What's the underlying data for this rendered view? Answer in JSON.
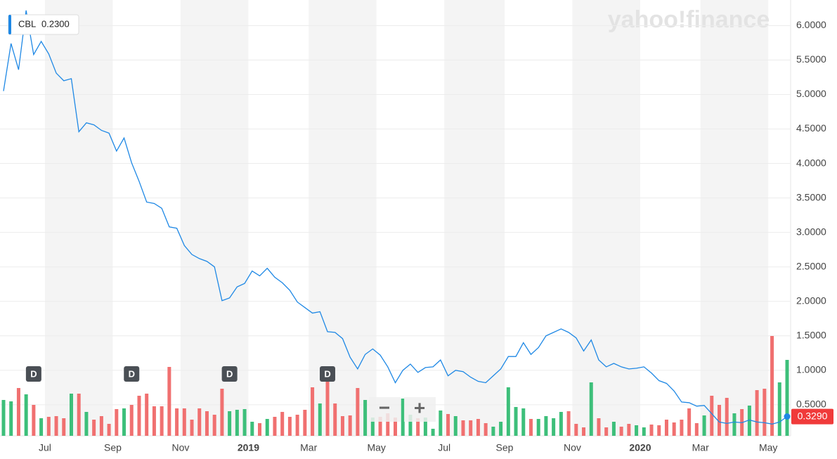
{
  "chart_data": {
    "type": "line",
    "watermark": "yahoo!finance",
    "tooltip": {
      "symbol": "CBL",
      "value": "0.2300"
    },
    "last_price": {
      "value": 0.329,
      "label": "0.3290"
    },
    "zoom": {
      "out": "−",
      "in": "+"
    },
    "categories": [
      null,
      null,
      null,
      null,
      null,
      "Jul",
      null,
      null,
      null,
      null,
      null,
      null,
      null,
      null,
      "Sep",
      null,
      null,
      null,
      null,
      null,
      null,
      null,
      null,
      "Nov",
      null,
      null,
      null,
      null,
      null,
      null,
      null,
      null,
      "2019",
      null,
      null,
      null,
      null,
      null,
      null,
      null,
      "Mar",
      null,
      null,
      null,
      null,
      null,
      null,
      null,
      null,
      "May",
      null,
      null,
      null,
      null,
      null,
      null,
      null,
      null,
      "Jul",
      null,
      null,
      null,
      null,
      null,
      null,
      null,
      "Sep",
      null,
      null,
      null,
      null,
      null,
      null,
      null,
      null,
      "Nov",
      null,
      null,
      null,
      null,
      null,
      null,
      null,
      null,
      "2020",
      null,
      null,
      null,
      null,
      null,
      null,
      null,
      "Mar",
      null,
      null,
      null,
      null,
      null,
      null,
      null,
      null,
      "May",
      null,
      null,
      null
    ],
    "series": [
      {
        "name": "CBL",
        "color": "#1e88e5",
        "values": [
          5.05,
          5.74,
          5.36,
          6.22,
          5.58,
          5.77,
          5.59,
          5.31,
          5.2,
          5.23,
          4.46,
          4.59,
          4.56,
          4.48,
          4.44,
          4.18,
          4.37,
          4.01,
          3.74,
          3.44,
          3.42,
          3.35,
          3.08,
          3.06,
          2.81,
          2.68,
          2.62,
          2.58,
          2.5,
          2.01,
          2.05,
          2.21,
          2.26,
          2.44,
          2.37,
          2.48,
          2.35,
          2.27,
          2.16,
          1.99,
          1.91,
          1.83,
          1.85,
          1.56,
          1.55,
          1.46,
          1.19,
          1.02,
          1.23,
          1.31,
          1.22,
          1.05,
          0.82,
          1.0,
          1.09,
          0.97,
          1.04,
          1.05,
          1.15,
          0.92,
          1.0,
          0.98,
          0.9,
          0.84,
          0.82,
          0.92,
          1.02,
          1.2,
          1.2,
          1.4,
          1.23,
          1.33,
          1.5,
          1.55,
          1.6,
          1.55,
          1.47,
          1.28,
          1.44,
          1.15,
          1.05,
          1.1,
          1.05,
          1.02,
          1.03,
          1.05,
          0.96,
          0.85,
          0.81,
          0.7,
          0.54,
          0.53,
          0.48,
          0.49,
          0.37,
          0.25,
          0.23,
          0.25,
          0.24,
          0.28,
          0.25,
          0.24,
          0.22,
          0.25,
          0.33
        ]
      },
      {
        "name": "Volume",
        "axis": "y2",
        "up_color": "#3dbf7a",
        "down_color": "#f07070",
        "values": [
          51,
          49,
          68,
          59,
          44,
          25,
          27,
          28,
          25,
          60,
          60,
          34,
          23,
          28,
          17,
          38,
          39,
          44,
          57,
          60,
          42,
          42,
          98,
          39,
          39,
          23,
          39,
          35,
          30,
          67,
          35,
          37,
          38,
          20,
          18,
          24,
          27,
          34,
          27,
          30,
          37,
          69,
          46,
          78,
          46,
          28,
          29,
          68,
          51,
          26,
          27,
          32,
          26,
          53,
          30,
          25,
          26,
          10,
          36,
          31,
          28,
          22,
          22,
          24,
          18,
          13,
          20,
          69,
          41,
          39,
          24,
          24,
          28,
          25,
          34,
          35,
          17,
          12,
          76,
          25,
          12,
          20,
          13,
          17,
          15,
          12,
          16,
          15,
          23,
          19,
          23,
          39,
          18,
          29,
          57,
          44,
          54,
          32,
          38,
          43,
          65,
          67,
          142,
          76,
          108
        ]
      }
    ],
    "annotations": [
      {
        "text": "D",
        "at": 4
      },
      {
        "text": "D",
        "at": 17
      },
      {
        "text": "D",
        "at": 30
      },
      {
        "text": "D",
        "at": 43
      }
    ],
    "ylim": [
      0.05,
      6.32
    ],
    "y2lim": [
      0,
      615
    ],
    "yticks": [
      {
        "value": 0.5,
        "label": "0.5000"
      },
      {
        "value": 1,
        "label": "1.0000"
      },
      {
        "value": 1.5,
        "label": "1.5000"
      },
      {
        "value": 2,
        "label": "2.0000"
      },
      {
        "value": 2.5,
        "label": "2.5000"
      },
      {
        "value": 3,
        "label": "3.0000"
      },
      {
        "value": 3.5,
        "label": "3.5000"
      },
      {
        "value": 4,
        "label": "4.0000"
      },
      {
        "value": 4.5,
        "label": "4.5000"
      },
      {
        "value": 5,
        "label": "5.0000"
      },
      {
        "value": 5.5,
        "label": "5.5000"
      },
      {
        "value": 6,
        "label": "6.0000"
      }
    ],
    "grid": true
  }
}
